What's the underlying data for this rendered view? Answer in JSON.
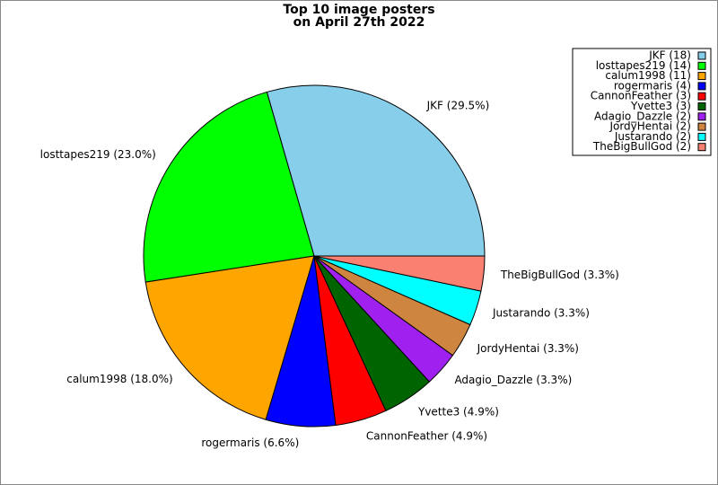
{
  "chart_data": {
    "type": "pie",
    "title": [
      "Top 10 image posters",
      "on April 27th 2022"
    ],
    "categories": [
      "JKF (18)",
      "losttapes219 (14)",
      "calum1998 (11)",
      "rogermaris (4)",
      "CannonFeather (3)",
      "Yvette3 (3)",
      "Adagio_Dazzle (2)",
      "JordyHentai (2)",
      "Justarando (2)",
      "TheBigBullGod (2)"
    ],
    "values": [
      29.5,
      23.0,
      18.0,
      6.6,
      4.9,
      4.9,
      3.3,
      3.3,
      3.3,
      3.3
    ],
    "value_labels": [
      "JKF (29.5%)",
      "losttapes219 (23.0%)",
      "calum1998 (18.0%)",
      "rogermaris (6.6%)",
      "CannonFeather (4.9%)",
      "Yvette3 (4.9%)",
      "Adagio_Dazzle (3.3%)",
      "JordyHentai (3.3%)",
      "Justarando (3.3%)",
      "TheBigBullGod (3.3%)"
    ],
    "colors": [
      "#87ceeb",
      "#00ff00",
      "#ffa500",
      "#0000ff",
      "#ff0000",
      "#006400",
      "#a020f0",
      "#cd853f",
      "#00ffff",
      "#fa8072"
    ],
    "legend": "upper right"
  }
}
